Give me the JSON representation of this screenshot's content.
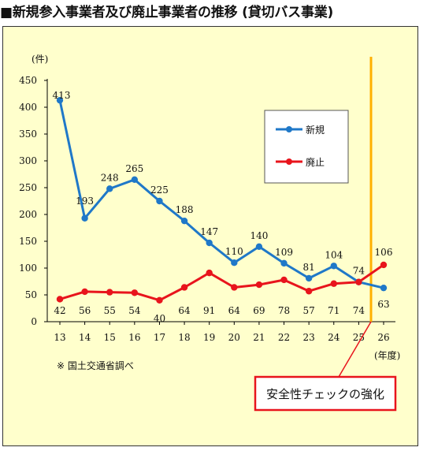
{
  "title": "■新規参入事業者及び廃止事業者の推移 (貸切バス事業)",
  "source_note": "※ 国土交通省調べ",
  "callout": "安全性チェックの強化",
  "colors": {
    "new_series": "#1f78c8",
    "closed_series": "#e8141c",
    "highlight_line": "#ffb000",
    "callout_border": "#e8141c",
    "panel_bg": "#ffffcc"
  },
  "chart_data": {
    "type": "line",
    "x": [
      "13",
      "14",
      "15",
      "16",
      "17",
      "18",
      "19",
      "20",
      "21",
      "22",
      "23",
      "24",
      "25",
      "26"
    ],
    "ylabel": "(件)",
    "xlabel": "(年度)",
    "ylim": [
      0,
      450
    ],
    "yticks": [
      0,
      50,
      100,
      150,
      200,
      250,
      300,
      350,
      400,
      450
    ],
    "grid": false,
    "legend_position": "top-right",
    "series": [
      {
        "name": "新規",
        "color": "#1f78c8",
        "values": [
          413,
          193,
          248,
          265,
          225,
          188,
          147,
          110,
          140,
          109,
          81,
          104,
          74,
          63
        ]
      },
      {
        "name": "廃止",
        "color": "#e8141c",
        "values": [
          42,
          56,
          55,
          54,
          40,
          64,
          91,
          64,
          69,
          78,
          57,
          71,
          74,
          106
        ]
      }
    ]
  }
}
